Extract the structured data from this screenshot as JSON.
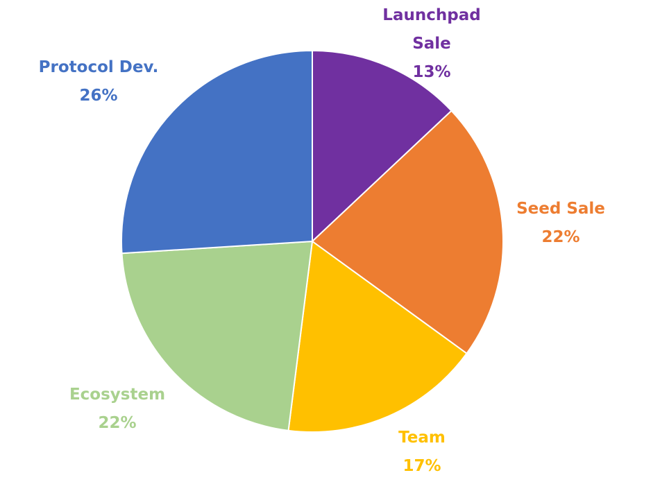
{
  "chart_data": {
    "type": "pie",
    "categories": [
      "Launchpad Sale",
      "Seed Sale",
      "Team",
      "Ecosystem",
      "Protocol Dev."
    ],
    "values": [
      13,
      22,
      17,
      22,
      26
    ],
    "value_labels": [
      "13%",
      "22%",
      "17%",
      "22%",
      "26%"
    ],
    "colors": [
      "#7030a0",
      "#ed7d31",
      "#ffc000",
      "#a9d18e",
      "#4472c4"
    ]
  }
}
